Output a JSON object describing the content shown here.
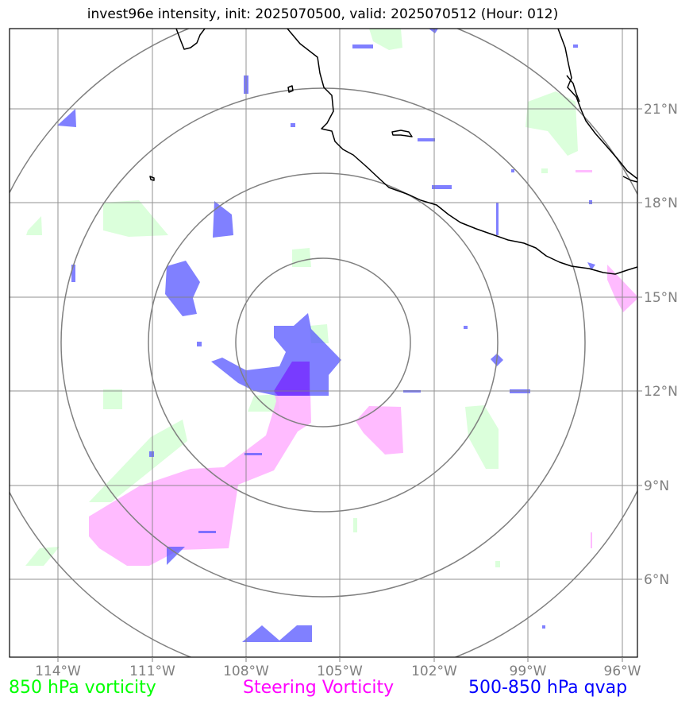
{
  "title": "invest96e intensity, init: 2025070500, valid: 2025070512 (Hour: 012)",
  "lon_labels": [
    "114°W",
    "111°W",
    "108°W",
    "105°W",
    "102°W",
    "99°W",
    "96°W"
  ],
  "lat_labels": [
    "21°N",
    "18°N",
    "15°N",
    "12°N",
    "9°N",
    "6°N"
  ],
  "legend": {
    "vorticity_850": "850 hPa vorticity",
    "steering": "Steering Vorticity",
    "qvap": "500-850 hPa qvap"
  },
  "colors": {
    "vorticity_850": "#00ff00",
    "steering": "#ff00ff",
    "qvap": "#0000ff",
    "grid": "#808080",
    "coast": "#000000"
  },
  "map": {
    "lon_range": [
      "115.5°W",
      "95.5°W"
    ],
    "lat_range": [
      "3.5°N",
      "23.5°N"
    ],
    "range_rings": 4
  }
}
